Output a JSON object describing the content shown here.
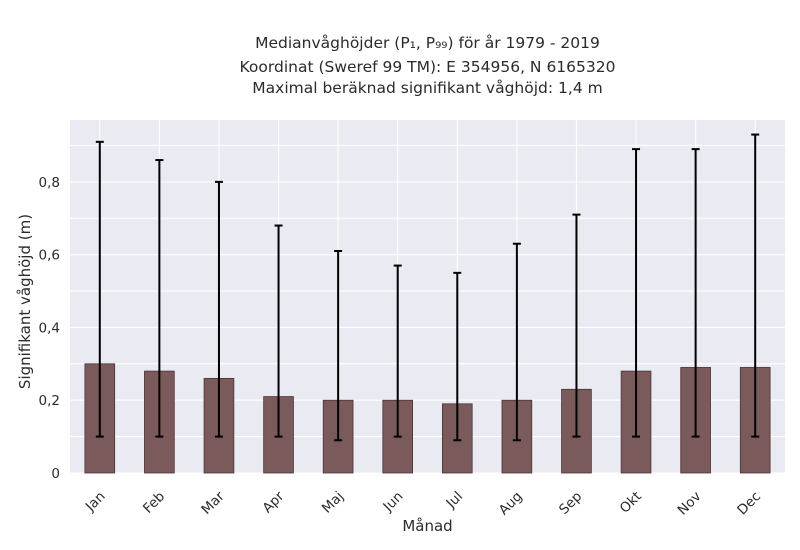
{
  "chart_data": {
    "type": "bar",
    "title_lines": [
      "Medianvåghöjder (P₁, P₉₉) för år 1979 - 2019",
      "Koordinat (Sweref 99 TM): E 354956, N 6165320",
      "Maximal beräknad signifikant våghöjd: 1,4 m"
    ],
    "xlabel": "Månad",
    "ylabel": "Signifikant våghöjd (m)",
    "categories": [
      "Jan",
      "Feb",
      "Mar",
      "Apr",
      "Maj",
      "Jun",
      "Jul",
      "Aug",
      "Sep",
      "Okt",
      "Nov",
      "Dec"
    ],
    "series": [
      {
        "values": [
          0.3,
          0.28,
          0.26,
          0.21,
          0.2,
          0.2,
          0.19,
          0.2,
          0.23,
          0.28,
          0.29,
          0.29
        ],
        "lower": [
          0.1,
          0.1,
          0.1,
          0.1,
          0.09,
          0.1,
          0.09,
          0.09,
          0.1,
          0.1,
          0.1,
          0.1
        ],
        "upper": [
          0.91,
          0.86,
          0.8,
          0.68,
          0.61,
          0.57,
          0.55,
          0.63,
          0.71,
          0.89,
          0.89,
          0.93
        ]
      }
    ],
    "yticks": [
      0,
      0.2,
      0.4,
      0.6,
      0.8
    ],
    "ytick_labels": [
      "0",
      "0,2",
      "0,4",
      "0,6",
      "0,8"
    ],
    "ylim": [
      0,
      0.97
    ],
    "grid": true,
    "colors": {
      "bar": "#7b5a5c",
      "bar_edge": "#4a3335",
      "error_bar": "#000000",
      "plot_bg": "#eaeaf2",
      "grid": "#ffffff",
      "text": "#2b2b2b"
    }
  }
}
